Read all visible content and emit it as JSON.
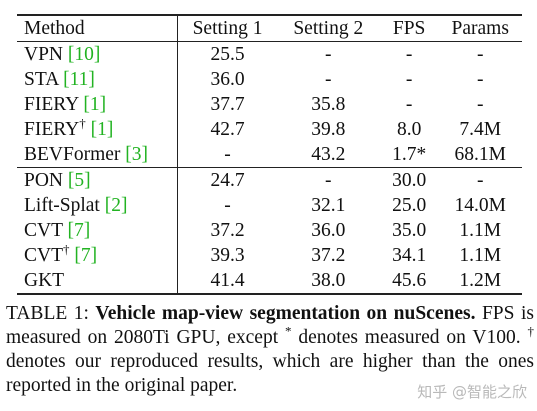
{
  "table": {
    "headers": [
      "Method",
      "Setting 1",
      "Setting 2",
      "FPS",
      "Params"
    ],
    "groups": [
      [
        {
          "method": "VPN",
          "dagger": false,
          "ref": "10",
          "s1": "25.5",
          "s2": "-",
          "fps": "-",
          "params": "-"
        },
        {
          "method": "STA",
          "dagger": false,
          "ref": "11",
          "s1": "36.0",
          "s2": "-",
          "fps": "-",
          "params": "-"
        },
        {
          "method": "FIERY",
          "dagger": false,
          "ref": "1",
          "s1": "37.7",
          "s2": "35.8",
          "fps": "-",
          "params": "-"
        },
        {
          "method": "FIERY",
          "dagger": true,
          "ref": "1",
          "s1": "42.7",
          "s2": "39.8",
          "fps": "8.0",
          "params": "7.4M"
        },
        {
          "method": "BEVFormer",
          "dagger": false,
          "ref": "3",
          "s1": "-",
          "s2": "43.2",
          "fps": "1.7*",
          "params": "68.1M"
        }
      ],
      [
        {
          "method": "PON",
          "dagger": false,
          "ref": "5",
          "s1": "24.7",
          "s2": "-",
          "fps": "30.0",
          "params": "-"
        },
        {
          "method": "Lift-Splat",
          "dagger": false,
          "ref": "2",
          "s1": "-",
          "s2": "32.1",
          "fps": "25.0",
          "params": "14.0M"
        },
        {
          "method": "CVT",
          "dagger": false,
          "ref": "7",
          "s1": "37.2",
          "s2": "36.0",
          "fps": "35.0",
          "params": "1.1M"
        },
        {
          "method": "CVT",
          "dagger": true,
          "ref": "7",
          "s1": "39.3",
          "s2": "37.2",
          "fps": "34.1",
          "params": "1.1M"
        },
        {
          "method": "GKT",
          "dagger": false,
          "ref": "",
          "s1": "41.4",
          "s2": "38.0",
          "fps": "45.6",
          "params": "1.2M"
        }
      ]
    ]
  },
  "caption": {
    "label": "TABLE 1: ",
    "title": "Vehicle map-view segmentation on nuScenes.",
    "text_1": " FPS is measured on 2080Ti GPU, except ",
    "star": "*",
    "text_2": " denotes measured on V100. ",
    "dagger": "†",
    "text_3": " denotes our reproduced results, which are higher than the ones reported in the original paper."
  },
  "watermark": "知乎 @智能之欣",
  "colors": {
    "reference_link": "#22b322",
    "text": "#111111",
    "watermark": "#b9b9b9"
  }
}
